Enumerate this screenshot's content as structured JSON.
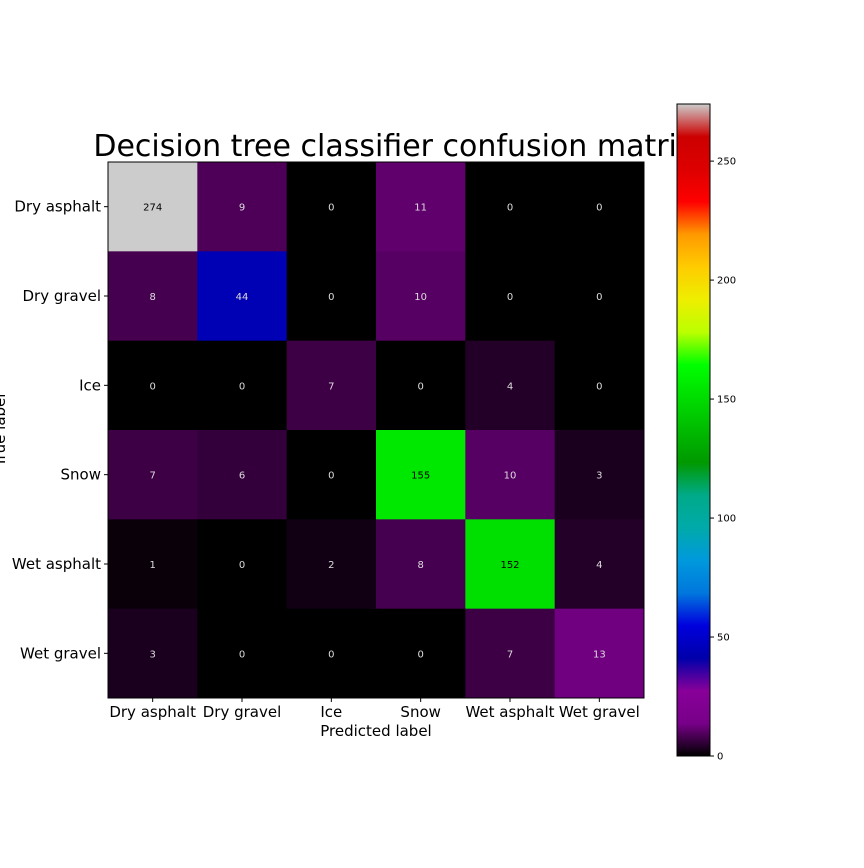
{
  "chart_data": {
    "type": "heatmap",
    "title": "Decision tree classifier confusion matrix",
    "xlabel": "Predicted label",
    "ylabel": "True label",
    "x_categories": [
      "Dry asphalt",
      "Dry gravel",
      "Ice",
      "Snow",
      "Wet asphalt",
      "Wet gravel"
    ],
    "y_categories": [
      "Dry asphalt",
      "Dry gravel",
      "Ice",
      "Snow",
      "Wet asphalt",
      "Wet gravel"
    ],
    "values": [
      [
        274,
        9,
        0,
        11,
        0,
        0
      ],
      [
        8,
        44,
        0,
        10,
        0,
        0
      ],
      [
        0,
        0,
        7,
        0,
        4,
        0
      ],
      [
        7,
        6,
        0,
        155,
        10,
        3
      ],
      [
        1,
        0,
        2,
        8,
        152,
        4
      ],
      [
        3,
        0,
        0,
        0,
        7,
        13
      ]
    ],
    "colormap": "nipy_spectral",
    "vmin": 0,
    "vmax": 274,
    "colorbar_ticks": [
      0,
      50,
      100,
      150,
      200,
      250
    ],
    "grid": false
  }
}
